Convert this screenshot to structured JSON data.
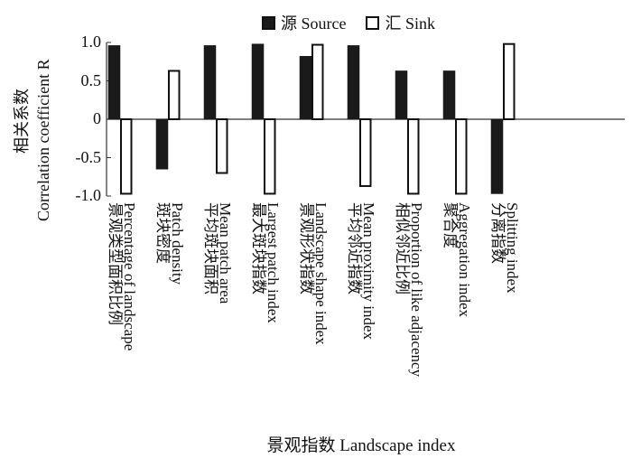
{
  "chart_data": {
    "type": "bar",
    "xlabel": "景观指数 Landscape index",
    "ylabel_cn": "相关系数",
    "ylabel": "Correlation coefficient R",
    "ylim": [
      -1.0,
      1.0
    ],
    "yticks": [
      "1.0",
      "0.5",
      "0",
      "-0.5",
      "-1.0"
    ],
    "grid": false,
    "legend": "top",
    "categories": [
      {
        "cn": "景观类型面积比例",
        "en": "Percentage of landscape"
      },
      {
        "cn": "斑块密度",
        "en": "Patch density"
      },
      {
        "cn": "平均斑块面积",
        "en": "Mean patch area"
      },
      {
        "cn": "最大斑块指数",
        "en": "Largest patch index"
      },
      {
        "cn": "景观形状指数",
        "en": "Landscape shape index"
      },
      {
        "cn": "平均邻近指数",
        "en": "Mean proximity index"
      },
      {
        "cn": "相似邻近比例",
        "en": "Proportion of like adjacency"
      },
      {
        "cn": "聚合度",
        "en": "Aggregation index"
      },
      {
        "cn": "分离指数",
        "en": "Splitting index"
      }
    ],
    "series": [
      {
        "name": "源 Source",
        "color": "#1a1a1a",
        "values": [
          0.96,
          -0.65,
          0.96,
          0.98,
          0.82,
          0.96,
          0.63,
          0.63,
          -0.97
        ]
      },
      {
        "name": "汇 Sink",
        "color": "#ffffff",
        "values": [
          -0.97,
          0.63,
          -0.7,
          -0.97,
          0.97,
          -0.87,
          -0.97,
          -0.97,
          0.98
        ]
      }
    ]
  }
}
